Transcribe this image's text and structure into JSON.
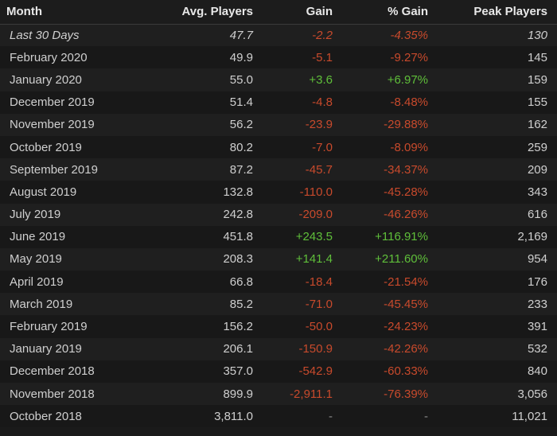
{
  "colors": {
    "negative": "#c84a2c",
    "positive": "#5fbf3a",
    "neutral": "#8a8a8a"
  },
  "headers": {
    "month": "Month",
    "avg": "Avg. Players",
    "gain": "Gain",
    "pct": "% Gain",
    "peak": "Peak Players"
  },
  "rows": [
    {
      "month": "Last 30 Days",
      "avg": "47.7",
      "gain": "-2.2",
      "pct": "-4.35%",
      "peak": "130",
      "trend": "neg",
      "italic": true
    },
    {
      "month": "February 2020",
      "avg": "49.9",
      "gain": "-5.1",
      "pct": "-9.27%",
      "peak": "145",
      "trend": "neg"
    },
    {
      "month": "January 2020",
      "avg": "55.0",
      "gain": "+3.6",
      "pct": "+6.97%",
      "peak": "159",
      "trend": "pos"
    },
    {
      "month": "December 2019",
      "avg": "51.4",
      "gain": "-4.8",
      "pct": "-8.48%",
      "peak": "155",
      "trend": "neg"
    },
    {
      "month": "November 2019",
      "avg": "56.2",
      "gain": "-23.9",
      "pct": "-29.88%",
      "peak": "162",
      "trend": "neg"
    },
    {
      "month": "October 2019",
      "avg": "80.2",
      "gain": "-7.0",
      "pct": "-8.09%",
      "peak": "259",
      "trend": "neg"
    },
    {
      "month": "September 2019",
      "avg": "87.2",
      "gain": "-45.7",
      "pct": "-34.37%",
      "peak": "209",
      "trend": "neg"
    },
    {
      "month": "August 2019",
      "avg": "132.8",
      "gain": "-110.0",
      "pct": "-45.28%",
      "peak": "343",
      "trend": "neg"
    },
    {
      "month": "July 2019",
      "avg": "242.8",
      "gain": "-209.0",
      "pct": "-46.26%",
      "peak": "616",
      "trend": "neg"
    },
    {
      "month": "June 2019",
      "avg": "451.8",
      "gain": "+243.5",
      "pct": "+116.91%",
      "peak": "2,169",
      "trend": "pos"
    },
    {
      "month": "May 2019",
      "avg": "208.3",
      "gain": "+141.4",
      "pct": "+211.60%",
      "peak": "954",
      "trend": "pos"
    },
    {
      "month": "April 2019",
      "avg": "66.8",
      "gain": "-18.4",
      "pct": "-21.54%",
      "peak": "176",
      "trend": "neg"
    },
    {
      "month": "March 2019",
      "avg": "85.2",
      "gain": "-71.0",
      "pct": "-45.45%",
      "peak": "233",
      "trend": "neg"
    },
    {
      "month": "February 2019",
      "avg": "156.2",
      "gain": "-50.0",
      "pct": "-24.23%",
      "peak": "391",
      "trend": "neg"
    },
    {
      "month": "January 2019",
      "avg": "206.1",
      "gain": "-150.9",
      "pct": "-42.26%",
      "peak": "532",
      "trend": "neg"
    },
    {
      "month": "December 2018",
      "avg": "357.0",
      "gain": "-542.9",
      "pct": "-60.33%",
      "peak": "840",
      "trend": "neg"
    },
    {
      "month": "November 2018",
      "avg": "899.9",
      "gain": "-2,911.1",
      "pct": "-76.39%",
      "peak": "3,056",
      "trend": "neg"
    },
    {
      "month": "October 2018",
      "avg": "3,811.0",
      "gain": "-",
      "pct": "-",
      "peak": "11,021",
      "trend": "neutral"
    }
  ]
}
